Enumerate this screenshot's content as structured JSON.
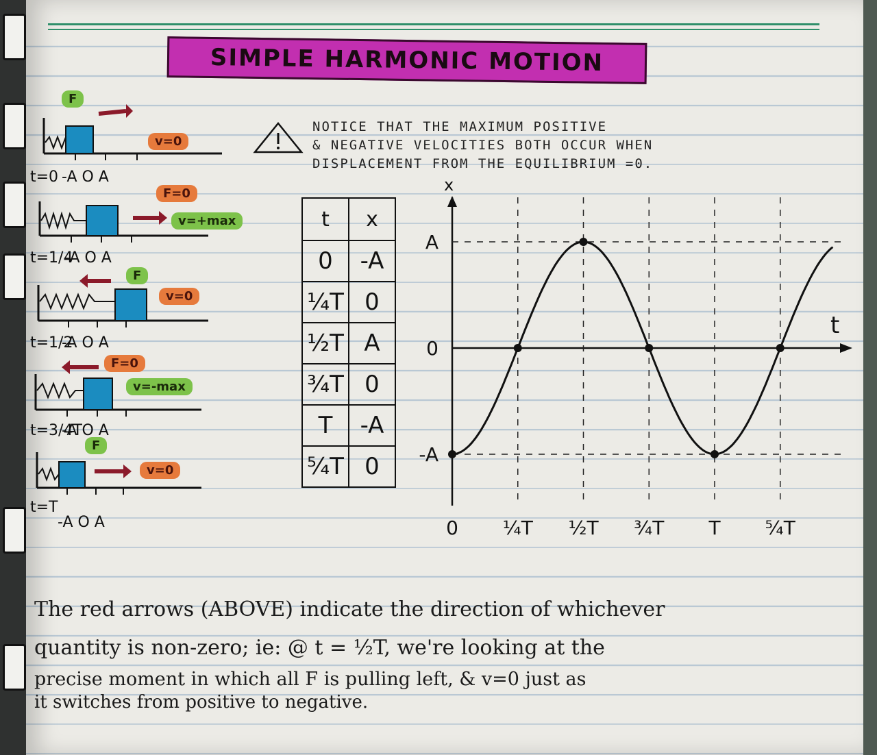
{
  "title": "SIMPLE HARMONIC MOTION",
  "notice": {
    "line1": "NOTICE THAT THE MAXIMUM POSITIVE",
    "line2": "& NEGATIVE VELOCITIES BOTH OCCUR WHEN",
    "line3": "DISPLACEMENT FROM THE EQUILIBRIUM =0."
  },
  "systems": [
    {
      "t_label": "t=0",
      "axis": "-A  O  A",
      "badges": [
        {
          "text": "F",
          "color": "green"
        },
        {
          "text": "v=0",
          "color": "orange"
        }
      ]
    },
    {
      "t_label": "t=1/4",
      "axis": "-A  O  A",
      "badges": [
        {
          "text": "F=0",
          "color": "orange"
        },
        {
          "text": "v=+max",
          "color": "green"
        }
      ]
    },
    {
      "t_label": "t=1/2",
      "axis": "-A  O  A",
      "badges": [
        {
          "text": "F",
          "color": "green"
        },
        {
          "text": "v=0",
          "color": "orange"
        }
      ]
    },
    {
      "t_label": "t=3/4T",
      "axis": "-A  O  A",
      "badges": [
        {
          "text": "F=0",
          "color": "orange"
        },
        {
          "text": "v=-max",
          "color": "green"
        }
      ]
    },
    {
      "t_label": "t=T",
      "axis": "-A  O  A",
      "badges": [
        {
          "text": "F",
          "color": "green"
        },
        {
          "text": "v=0",
          "color": "orange"
        }
      ]
    }
  ],
  "table": {
    "headers": [
      "t",
      "x"
    ],
    "rows": [
      [
        "0",
        "-A"
      ],
      [
        "¼T",
        "0"
      ],
      [
        "½T",
        "A"
      ],
      [
        "¾T",
        "0"
      ],
      [
        "T",
        "-A"
      ],
      [
        "⁵⁄₄T",
        "0"
      ]
    ]
  },
  "chart_data": {
    "type": "line",
    "xlabel": "t",
    "ylabel": "x",
    "x_ticks": [
      "0",
      "¼T",
      "½T",
      "¾T",
      "T",
      "⁵⁄₄T"
    ],
    "y_ticks": [
      "A",
      "0",
      "-A"
    ],
    "series": [
      {
        "x": [
          0,
          0.25,
          0.5,
          0.75,
          1,
          1.25
        ],
        "y": [
          -1,
          0,
          1,
          0,
          -1,
          0
        ]
      }
    ]
  },
  "caption": {
    "line1": "The red arrows (ABOVE) indicate the direction of whichever",
    "line2": "quantity is non-zero;  ie: @ t = ½T, we're looking at the",
    "line3": "precise moment in which all F is pulling left, & v=0 just as",
    "line4": "it switches from positive to negative."
  }
}
